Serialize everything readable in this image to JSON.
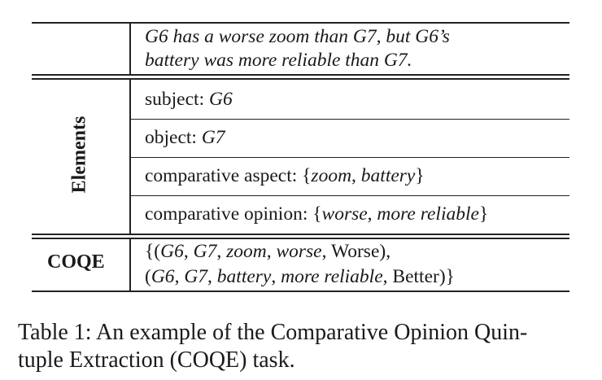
{
  "table": {
    "sentence": {
      "line1": "G6 has a worse zoom than G7, but G6’s",
      "line2": "battery was more reliable than G7."
    },
    "elements_label": "Elements",
    "elements": {
      "subject_key": "subject:",
      "subject_val": "G6",
      "object_key": "object:",
      "object_val": "G7",
      "aspect_key": "comparative aspect:",
      "aspect_val1": "zoom",
      "aspect_val2": "battery",
      "opinion_key": "comparative opinion:",
      "opinion_val1": "worse",
      "opinion_val2": "more reliable"
    },
    "coqe_label": "COQE",
    "quintuples": {
      "q1_subject": "G6",
      "q1_object": "G7",
      "q1_aspect": "zoom",
      "q1_opinion": "worse",
      "q1_label": "Worse",
      "q2_subject": "G6",
      "q2_object": "G7",
      "q2_aspect": "battery",
      "q2_opinion": "more reliable",
      "q2_label": "Better"
    }
  },
  "caption": {
    "line1": "Table 1: An example of the Comparative Opinion Quin-",
    "line2": "tuple Extraction (COQE) task."
  }
}
